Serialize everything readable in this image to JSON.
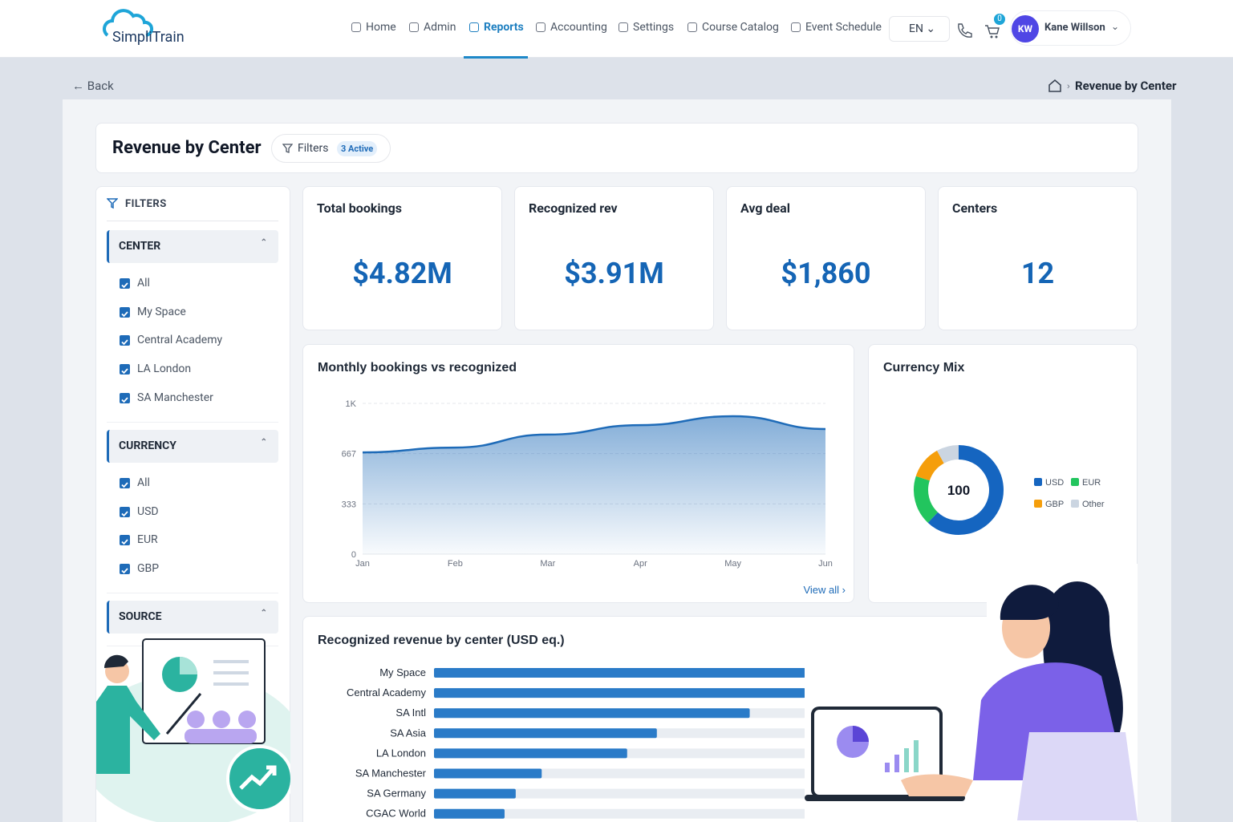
{
  "header": {
    "logo": "SimpliTrain",
    "nav": [
      "Home",
      "Admin",
      "Reports",
      "Accounting",
      "Settings",
      "Course Catalog",
      "Event Schedule"
    ],
    "active_nav": "Reports",
    "language": "EN",
    "cart_count": 0,
    "user_initials": "KW",
    "user_name": "Kane Willson"
  },
  "breadcrumb": {
    "back": "← Back",
    "current": "Revenue by Center"
  },
  "page": {
    "title": "Revenue by Center",
    "filters_button": "Filters",
    "filters_badge": "3 Active"
  },
  "sidebar": {
    "title": "FILTERS",
    "groups": [
      {
        "title": "CENTER",
        "options": [
          "All",
          "My Space",
          "Central Academy",
          "LA London",
          "SA Manchester"
        ]
      },
      {
        "title": "CURRENCY",
        "options": [
          "All",
          "USD",
          "EUR",
          "GBP"
        ]
      },
      {
        "title": "SOURCE"
      }
    ]
  },
  "kpis": [
    {
      "label": "Total bookings",
      "value": "$4.82M"
    },
    {
      "label": "Recognized rev",
      "value": "$3.91M"
    },
    {
      "label": "Avg deal",
      "value": "$1,860"
    },
    {
      "label": "Centers",
      "value": "12"
    }
  ],
  "chart_data": [
    {
      "type": "area",
      "title": "Monthly bookings vs recognized",
      "categories": [
        "Jan",
        "Feb",
        "Mar",
        "Apr",
        "May",
        "Jun"
      ],
      "values": [
        675,
        707,
        793,
        856,
        915,
        830
      ],
      "color": "#1e6bb8",
      "ylim": [
        0,
        1000
      ],
      "yticks": [
        0,
        333,
        667,
        {
          "value": 1000,
          "label": "1K"
        }
      ],
      "grid": true,
      "link": "View all ›"
    },
    {
      "type": "donut",
      "title": "Currency Mix",
      "categories": [
        "USD",
        "EUR",
        "GBP",
        "Other"
      ],
      "values": [
        62,
        18,
        12,
        8
      ],
      "colors": [
        "#1565c0",
        "#22c55e",
        "#f59e0b",
        "#cbd5e1"
      ],
      "center_label": 100,
      "legend": "right"
    },
    {
      "type": "hbar",
      "title": "Recognized revenue by center (USD eq.)",
      "categories": [
        "My Space",
        "Central Academy",
        "SA Intl",
        "SA Asia",
        "LA London",
        "SA Manchester",
        "SA Germany",
        "CGAC World"
      ],
      "values": [
        100,
        100,
        85,
        60,
        52,
        29,
        22,
        19
      ],
      "color": "#2a7bc8",
      "xlim": [
        0,
        100
      ]
    }
  ]
}
